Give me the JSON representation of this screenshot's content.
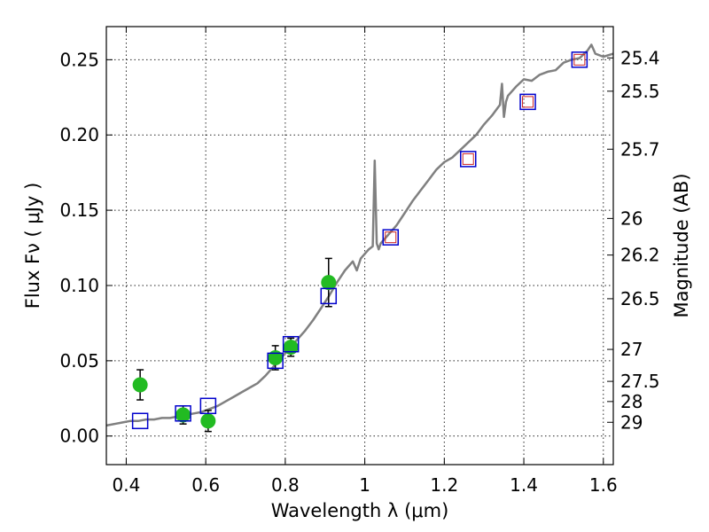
{
  "chart_data": {
    "type": "scatter",
    "xlabel": "Wavelength  λ (μm)",
    "ylabel": "Flux  Fν  ( μJy )",
    "y2label": "Magnitude (AB)",
    "xlim": [
      0.35,
      1.625
    ],
    "ylim": [
      -0.019,
      0.272
    ],
    "xticks": [
      0.4,
      0.6,
      0.8,
      1.0,
      1.2,
      1.4,
      1.6
    ],
    "xtick_labels": [
      "0.4",
      "0.6",
      "0.8",
      "1",
      "1.2",
      "1.4",
      "1.6"
    ],
    "yticks": [
      0.0,
      0.05,
      0.1,
      0.15,
      0.2,
      0.25
    ],
    "ytick_labels": [
      "0.00",
      "0.05",
      "0.10",
      "0.15",
      "0.20",
      "0.25"
    ],
    "mag_ticks": [
      25.4,
      25.5,
      25.7,
      26,
      26.2,
      26.5,
      27,
      27.5,
      28,
      29
    ],
    "mag_tick_labels": [
      "25.4",
      "25.5",
      "25.7",
      "26",
      "26.2",
      "26.5",
      "27",
      "27.5",
      "28",
      "29"
    ],
    "grid": true,
    "colors": {
      "template": "#808080",
      "observed": "#22bb22",
      "model": "#0000cc",
      "model_inner": "#cc2222",
      "errorbar": "#000000"
    },
    "series": [
      {
        "kind": "line",
        "x": [
          0.35,
          0.37,
          0.39,
          0.41,
          0.43,
          0.45,
          0.47,
          0.49,
          0.51,
          0.53,
          0.55,
          0.57,
          0.59,
          0.61,
          0.63,
          0.65,
          0.67,
          0.69,
          0.71,
          0.73,
          0.75,
          0.77,
          0.79,
          0.81,
          0.83,
          0.85,
          0.87,
          0.89,
          0.91,
          0.93,
          0.95,
          0.97,
          0.98,
          0.99,
          1.0,
          1.01,
          1.02,
          1.025,
          1.03,
          1.035,
          1.04,
          1.06,
          1.08,
          1.1,
          1.12,
          1.14,
          1.16,
          1.18,
          1.2,
          1.22,
          1.24,
          1.26,
          1.28,
          1.3,
          1.32,
          1.34,
          1.345,
          1.35,
          1.355,
          1.36,
          1.38,
          1.4,
          1.42,
          1.44,
          1.46,
          1.48,
          1.5,
          1.52,
          1.54,
          1.56,
          1.57,
          1.58,
          1.6,
          1.625
        ],
        "y": [
          0.007,
          0.008,
          0.009,
          0.01,
          0.01,
          0.011,
          0.011,
          0.012,
          0.012,
          0.013,
          0.014,
          0.015,
          0.016,
          0.018,
          0.02,
          0.023,
          0.026,
          0.029,
          0.032,
          0.035,
          0.04,
          0.046,
          0.052,
          0.058,
          0.064,
          0.07,
          0.077,
          0.085,
          0.093,
          0.102,
          0.11,
          0.116,
          0.11,
          0.118,
          0.121,
          0.124,
          0.126,
          0.183,
          0.128,
          0.124,
          0.128,
          0.134,
          0.14,
          0.148,
          0.156,
          0.163,
          0.17,
          0.177,
          0.182,
          0.185,
          0.19,
          0.195,
          0.2,
          0.207,
          0.213,
          0.22,
          0.234,
          0.212,
          0.222,
          0.226,
          0.232,
          0.237,
          0.236,
          0.24,
          0.242,
          0.243,
          0.248,
          0.25,
          0.251,
          0.256,
          0.26,
          0.254,
          0.252,
          0.254
        ]
      },
      {
        "kind": "points-errorbars",
        "x": [
          0.435,
          0.543,
          0.606,
          0.775,
          0.814,
          0.909
        ],
        "y": [
          0.034,
          0.014,
          0.01,
          0.052,
          0.059,
          0.102
        ],
        "yerr": [
          0.01,
          0.006,
          0.007,
          0.008,
          0.006,
          0.016
        ]
      },
      {
        "kind": "open-squares",
        "x": [
          0.435,
          0.543,
          0.606,
          0.775,
          0.814,
          0.909,
          1.065,
          1.26,
          1.41,
          1.54
        ],
        "y": [
          0.01,
          0.015,
          0.02,
          0.05,
          0.061,
          0.093,
          0.132,
          0.184,
          0.222,
          0.25
        ]
      },
      {
        "kind": "inner-squares",
        "x": [
          1.065,
          1.26,
          1.41,
          1.54
        ],
        "y": [
          0.132,
          0.184,
          0.222,
          0.25
        ]
      }
    ]
  }
}
